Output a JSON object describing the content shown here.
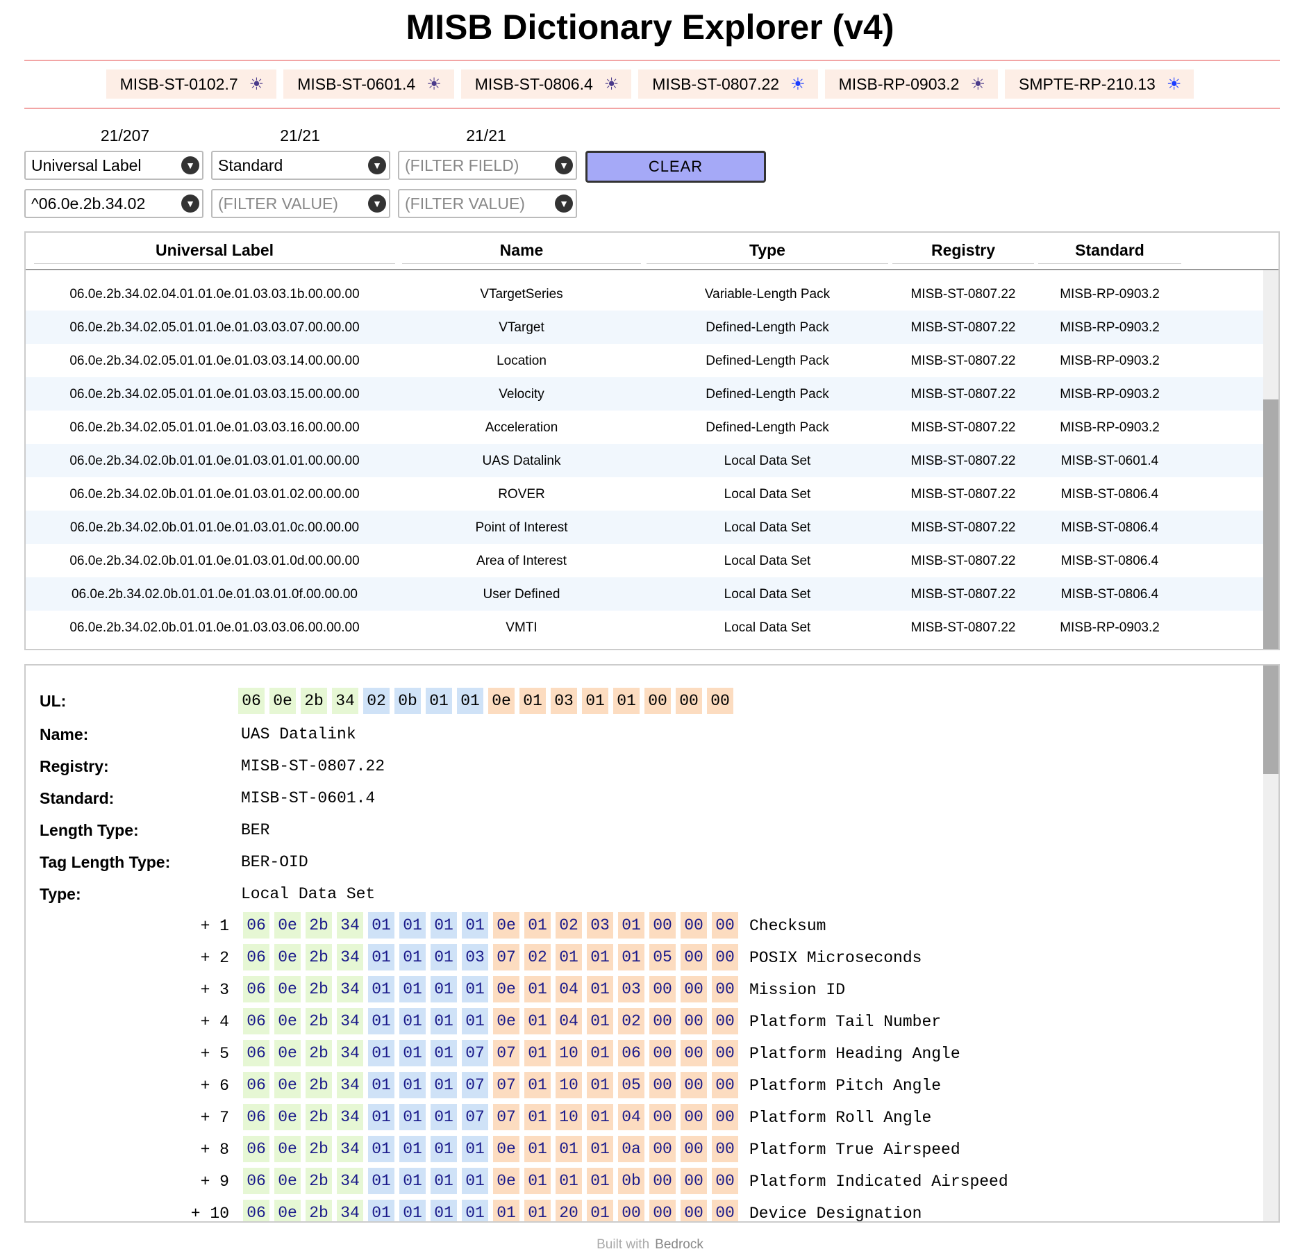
{
  "title": "MISB Dictionary Explorer (v4)",
  "chips": [
    {
      "label": "MISB-ST-0102.7",
      "active": false
    },
    {
      "label": "MISB-ST-0601.4",
      "active": false
    },
    {
      "label": "MISB-ST-0806.4",
      "active": false
    },
    {
      "label": "MISB-ST-0807.22",
      "active": true
    },
    {
      "label": "MISB-RP-0903.2",
      "active": false
    },
    {
      "label": "SMPTE-RP-210.13",
      "active": true
    }
  ],
  "filters": {
    "counts": [
      "21/207",
      "21/21",
      "21/21"
    ],
    "field1": "Universal Label",
    "field2": "Standard",
    "field3_placeholder": "(FILTER FIELD)",
    "value1": "^06.0e.2b.34.02",
    "value2_placeholder": "(FILTER VALUE)",
    "value3_placeholder": "(FILTER VALUE)",
    "clear_label": "CLEAR"
  },
  "table": {
    "headers": [
      "Universal Label",
      "Name",
      "Type",
      "Registry",
      "Standard"
    ],
    "rows": [
      [
        "06.0e.2b.34.02.04.01.01.0e.01.03.03.1b.00.00.00",
        "VTargetSeries",
        "Variable-Length Pack",
        "MISB-ST-0807.22",
        "MISB-RP-0903.2"
      ],
      [
        "06.0e.2b.34.02.05.01.01.0e.01.03.03.07.00.00.00",
        "VTarget",
        "Defined-Length Pack",
        "MISB-ST-0807.22",
        "MISB-RP-0903.2"
      ],
      [
        "06.0e.2b.34.02.05.01.01.0e.01.03.03.14.00.00.00",
        "Location",
        "Defined-Length Pack",
        "MISB-ST-0807.22",
        "MISB-RP-0903.2"
      ],
      [
        "06.0e.2b.34.02.05.01.01.0e.01.03.03.15.00.00.00",
        "Velocity",
        "Defined-Length Pack",
        "MISB-ST-0807.22",
        "MISB-RP-0903.2"
      ],
      [
        "06.0e.2b.34.02.05.01.01.0e.01.03.03.16.00.00.00",
        "Acceleration",
        "Defined-Length Pack",
        "MISB-ST-0807.22",
        "MISB-RP-0903.2"
      ],
      [
        "06.0e.2b.34.02.0b.01.01.0e.01.03.01.01.00.00.00",
        "UAS Datalink",
        "Local Data Set",
        "MISB-ST-0807.22",
        "MISB-ST-0601.4"
      ],
      [
        "06.0e.2b.34.02.0b.01.01.0e.01.03.01.02.00.00.00",
        "ROVER",
        "Local Data Set",
        "MISB-ST-0807.22",
        "MISB-ST-0806.4"
      ],
      [
        "06.0e.2b.34.02.0b.01.01.0e.01.03.01.0c.00.00.00",
        "Point of Interest",
        "Local Data Set",
        "MISB-ST-0807.22",
        "MISB-ST-0806.4"
      ],
      [
        "06.0e.2b.34.02.0b.01.01.0e.01.03.01.0d.00.00.00",
        "Area of Interest",
        "Local Data Set",
        "MISB-ST-0807.22",
        "MISB-ST-0806.4"
      ],
      [
        "06.0e.2b.34.02.0b.01.01.0e.01.03.01.0f.00.00.00",
        "User Defined",
        "Local Data Set",
        "MISB-ST-0807.22",
        "MISB-ST-0806.4"
      ],
      [
        "06.0e.2b.34.02.0b.01.01.0e.01.03.03.06.00.00.00",
        "VMTI",
        "Local Data Set",
        "MISB-ST-0807.22",
        "MISB-RP-0903.2"
      ]
    ]
  },
  "detail": {
    "labels": {
      "ul": "UL:",
      "name": "Name:",
      "registry": "Registry:",
      "standard": "Standard:",
      "length_type": "Length Type:",
      "tag_length_type": "Tag Length Type:",
      "type": "Type:"
    },
    "ul_bytes": [
      "06",
      "0e",
      "2b",
      "34",
      "02",
      "0b",
      "01",
      "01",
      "0e",
      "01",
      "03",
      "01",
      "01",
      "00",
      "00",
      "00"
    ],
    "name": "UAS Datalink",
    "registry": "MISB-ST-0807.22",
    "standard": "MISB-ST-0601.4",
    "length_type": "BER",
    "tag_length_type": "BER-OID",
    "type": "Local Data Set",
    "children": [
      {
        "index": "+ 1",
        "bytes": [
          "06",
          "0e",
          "2b",
          "34",
          "01",
          "01",
          "01",
          "01",
          "0e",
          "01",
          "02",
          "03",
          "01",
          "00",
          "00",
          "00"
        ],
        "name": "Checksum"
      },
      {
        "index": "+ 2",
        "bytes": [
          "06",
          "0e",
          "2b",
          "34",
          "01",
          "01",
          "01",
          "03",
          "07",
          "02",
          "01",
          "01",
          "01",
          "05",
          "00",
          "00"
        ],
        "name": "POSIX Microseconds"
      },
      {
        "index": "+ 3",
        "bytes": [
          "06",
          "0e",
          "2b",
          "34",
          "01",
          "01",
          "01",
          "01",
          "0e",
          "01",
          "04",
          "01",
          "03",
          "00",
          "00",
          "00"
        ],
        "name": "Mission ID"
      },
      {
        "index": "+ 4",
        "bytes": [
          "06",
          "0e",
          "2b",
          "34",
          "01",
          "01",
          "01",
          "01",
          "0e",
          "01",
          "04",
          "01",
          "02",
          "00",
          "00",
          "00"
        ],
        "name": "Platform Tail Number"
      },
      {
        "index": "+ 5",
        "bytes": [
          "06",
          "0e",
          "2b",
          "34",
          "01",
          "01",
          "01",
          "07",
          "07",
          "01",
          "10",
          "01",
          "06",
          "00",
          "00",
          "00"
        ],
        "name": "Platform Heading Angle"
      },
      {
        "index": "+ 6",
        "bytes": [
          "06",
          "0e",
          "2b",
          "34",
          "01",
          "01",
          "01",
          "07",
          "07",
          "01",
          "10",
          "01",
          "05",
          "00",
          "00",
          "00"
        ],
        "name": "Platform Pitch Angle"
      },
      {
        "index": "+ 7",
        "bytes": [
          "06",
          "0e",
          "2b",
          "34",
          "01",
          "01",
          "01",
          "07",
          "07",
          "01",
          "10",
          "01",
          "04",
          "00",
          "00",
          "00"
        ],
        "name": "Platform Roll Angle"
      },
      {
        "index": "+ 8",
        "bytes": [
          "06",
          "0e",
          "2b",
          "34",
          "01",
          "01",
          "01",
          "01",
          "0e",
          "01",
          "01",
          "01",
          "0a",
          "00",
          "00",
          "00"
        ],
        "name": "Platform True Airspeed"
      },
      {
        "index": "+ 9",
        "bytes": [
          "06",
          "0e",
          "2b",
          "34",
          "01",
          "01",
          "01",
          "01",
          "0e",
          "01",
          "01",
          "01",
          "0b",
          "00",
          "00",
          "00"
        ],
        "name": "Platform Indicated Airspeed"
      },
      {
        "index": "+ 10",
        "bytes": [
          "06",
          "0e",
          "2b",
          "34",
          "01",
          "01",
          "01",
          "01",
          "01",
          "01",
          "20",
          "01",
          "00",
          "00",
          "00",
          "00"
        ],
        "name": "Device Designation"
      }
    ]
  },
  "footer": {
    "prefix": "Built with",
    "brand": "Bedrock"
  },
  "icons": {
    "chip": "sun-icon",
    "select": "chevron-down-icon"
  }
}
